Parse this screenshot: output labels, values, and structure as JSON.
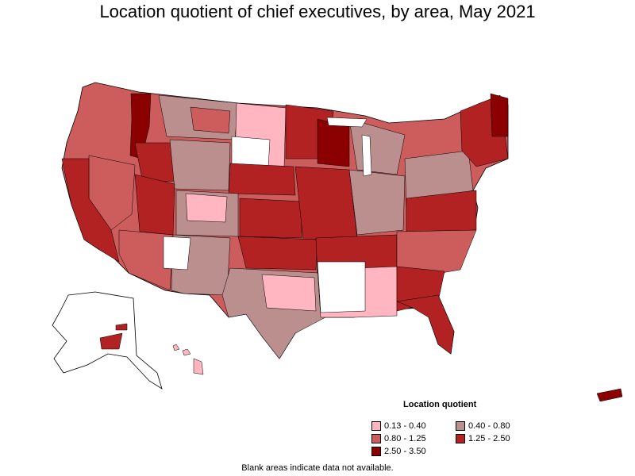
{
  "title": "Location quotient of chief executives, by area, May 2021",
  "legend": {
    "title": "Location quotient",
    "items": [
      {
        "label": "0.13 - 0.40",
        "color": "#ffb6c1"
      },
      {
        "label": "0.40 - 0.80",
        "color": "#bc8f8f"
      },
      {
        "label": "0.80 - 1.25",
        "color": "#cd5c5c"
      },
      {
        "label": "1.25 - 2.50",
        "color": "#b22222"
      },
      {
        "label": "2.50 - 3.50",
        "color": "#8b0000"
      }
    ]
  },
  "footnote": "Blank areas indicate data not available.",
  "colors": {
    "border": "#000000",
    "no_data": "#ffffff"
  }
}
